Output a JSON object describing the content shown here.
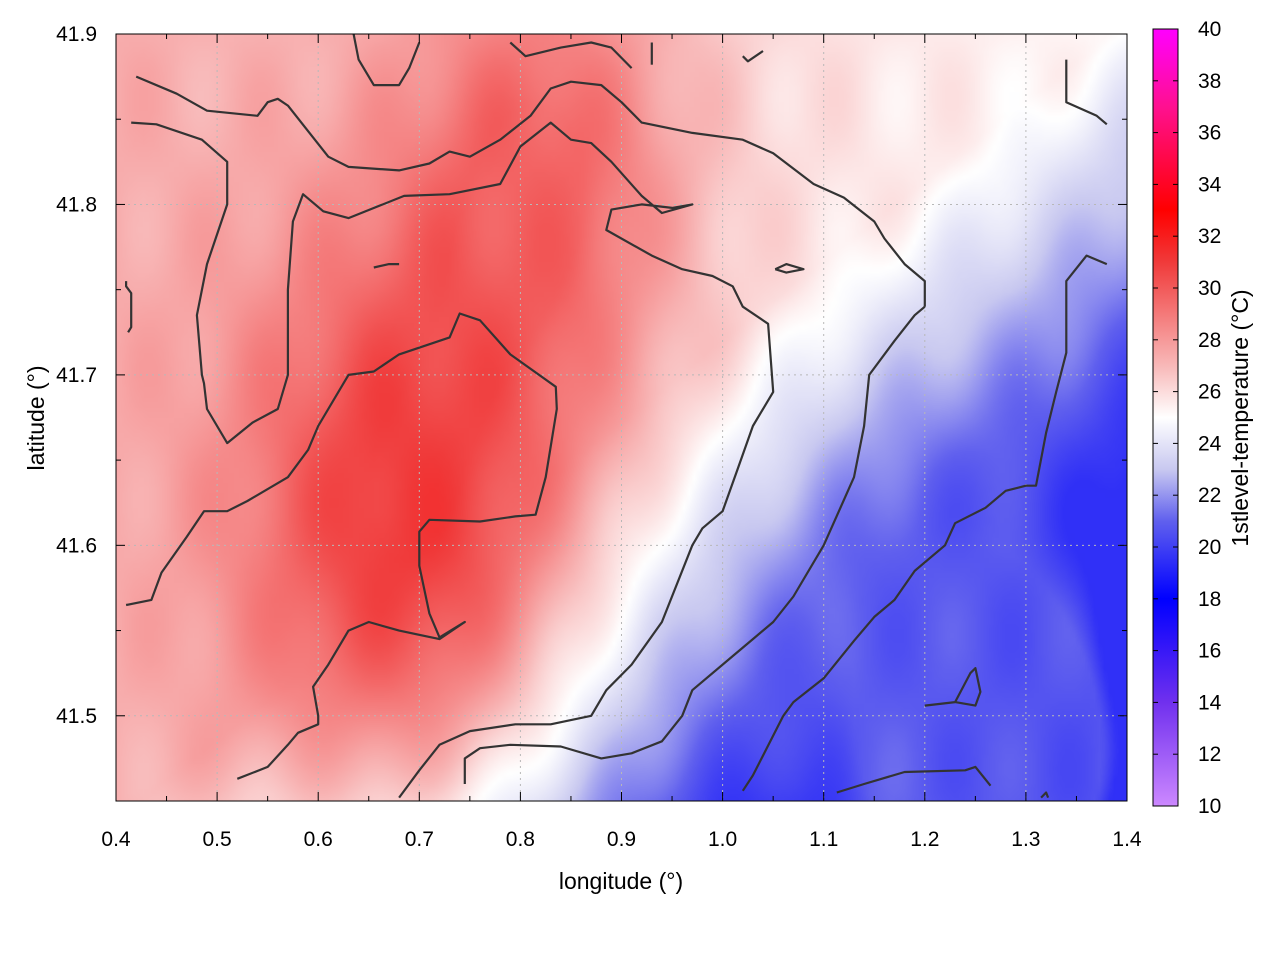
{
  "chart_data": {
    "type": "heatmap",
    "xlabel": "longitude (°)",
    "ylabel": "latitude (°)",
    "colorbar_label": "1stlevel-temperature (°C)",
    "xlim": [
      0.4,
      1.4
    ],
    "ylim": [
      41.45,
      41.9
    ],
    "x_ticks": [
      "0.4",
      "0.5",
      "0.6",
      "0.7",
      "0.8",
      "0.9",
      "1.0",
      "1.1",
      "1.2",
      "1.3",
      "1.4"
    ],
    "y_ticks": [
      "41.5",
      "41.6",
      "41.7",
      "41.8",
      "41.9"
    ],
    "colorbar_range": [
      10,
      40
    ],
    "colorbar_ticks": [
      "10",
      "12",
      "14",
      "16",
      "18",
      "20",
      "22",
      "24",
      "26",
      "28",
      "30",
      "32",
      "34",
      "36",
      "38",
      "40"
    ],
    "colorscale": [
      {
        "value": 10,
        "color": "#cc88ff"
      },
      {
        "value": 14,
        "color": "#7030ee"
      },
      {
        "value": 18,
        "color": "#0000ff"
      },
      {
        "value": 21,
        "color": "#6060ee"
      },
      {
        "value": 23,
        "color": "#c8c8f0"
      },
      {
        "value": 25,
        "color": "#ffffff"
      },
      {
        "value": 27,
        "color": "#f8b8b8"
      },
      {
        "value": 31,
        "color": "#f03a3a"
      },
      {
        "value": 33,
        "color": "#ff0000"
      },
      {
        "value": 37,
        "color": "#ff1090"
      },
      {
        "value": 40,
        "color": "#ff00ff"
      }
    ],
    "grid": true,
    "field_centers": [
      {
        "lon": 0.68,
        "lat": 41.62,
        "temp": 31.0,
        "radius": 0.17
      },
      {
        "lon": 0.82,
        "lat": 41.82,
        "temp": 29.5,
        "radius": 0.14
      },
      {
        "lon": 1.25,
        "lat": 41.52,
        "temp": 20.5,
        "radius": 0.1
      },
      {
        "lon": 1.32,
        "lat": 41.47,
        "temp": 20.5,
        "radius": 0.08
      },
      {
        "lon": 1.2,
        "lat": 41.5,
        "temp": 21.0,
        "radius": 0.14
      }
    ],
    "contours": [
      [
        [
          0.42,
          41.875
        ],
        [
          0.46,
          41.865
        ],
        [
          0.49,
          41.855
        ],
        [
          0.54,
          41.852
        ],
        [
          0.55,
          41.86
        ],
        [
          0.56,
          41.862
        ],
        [
          0.57,
          41.858
        ],
        [
          0.61,
          41.828
        ],
        [
          0.63,
          41.822
        ],
        [
          0.68,
          41.82
        ],
        [
          0.71,
          41.824
        ],
        [
          0.73,
          41.831
        ],
        [
          0.75,
          41.828
        ],
        [
          0.78,
          41.838
        ],
        [
          0.81,
          41.852
        ],
        [
          0.83,
          41.868
        ],
        [
          0.85,
          41.872
        ],
        [
          0.88,
          41.87
        ],
        [
          0.9,
          41.86
        ],
        [
          0.92,
          41.848
        ],
        [
          0.97,
          41.842
        ],
        [
          1.02,
          41.838
        ],
        [
          1.05,
          41.83
        ],
        [
          1.09,
          41.812
        ],
        [
          1.12,
          41.804
        ],
        [
          1.15,
          41.79
        ],
        [
          1.16,
          41.78
        ],
        [
          1.18,
          41.765
        ],
        [
          1.2,
          41.755
        ],
        [
          1.2,
          41.74
        ]
      ],
      [
        [
          0.415,
          41.848
        ],
        [
          0.44,
          41.847
        ],
        [
          0.485,
          41.838
        ],
        [
          0.51,
          41.825
        ],
        [
          0.51,
          41.8
        ],
        [
          0.49,
          41.765
        ],
        [
          0.48,
          41.735
        ],
        [
          0.485,
          41.7
        ],
        [
          0.487,
          41.695
        ],
        [
          0.49,
          41.68
        ],
        [
          0.51,
          41.66
        ],
        [
          0.535,
          41.672
        ],
        [
          0.56,
          41.68
        ],
        [
          0.57,
          41.7
        ],
        [
          0.57,
          41.75
        ],
        [
          0.575,
          41.79
        ],
        [
          0.585,
          41.806
        ],
        [
          0.605,
          41.796
        ],
        [
          0.63,
          41.792
        ],
        [
          0.685,
          41.805
        ],
        [
          0.73,
          41.806
        ],
        [
          0.78,
          41.812
        ],
        [
          0.8,
          41.834
        ],
        [
          0.83,
          41.848
        ],
        [
          0.85,
          41.838
        ],
        [
          0.87,
          41.836
        ],
        [
          0.89,
          41.825
        ],
        [
          0.92,
          41.805
        ],
        [
          0.94,
          41.795
        ],
        [
          0.97,
          41.8
        ],
        [
          0.95,
          41.798
        ],
        [
          0.92,
          41.8
        ],
        [
          0.89,
          41.797
        ],
        [
          0.885,
          41.785
        ],
        [
          0.93,
          41.77
        ],
        [
          0.96,
          41.762
        ],
        [
          0.99,
          41.758
        ],
        [
          1.01,
          41.752
        ],
        [
          1.02,
          41.74
        ],
        [
          1.045,
          41.73
        ],
        [
          1.05,
          41.69
        ],
        [
          1.03,
          41.67
        ],
        [
          1.015,
          41.645
        ],
        [
          1.0,
          41.62
        ],
        [
          0.98,
          41.61
        ],
        [
          0.97,
          41.6
        ],
        [
          0.94,
          41.555
        ],
        [
          0.91,
          41.53
        ],
        [
          0.885,
          41.515
        ],
        [
          0.87,
          41.5
        ],
        [
          0.83,
          41.495
        ],
        [
          0.795,
          41.495
        ],
        [
          0.75,
          41.491
        ],
        [
          0.72,
          41.483
        ],
        [
          0.7,
          41.468
        ],
        [
          0.68,
          41.452
        ]
      ],
      [
        [
          0.41,
          41.565
        ],
        [
          0.435,
          41.568
        ],
        [
          0.445,
          41.584
        ],
        [
          0.47,
          41.605
        ],
        [
          0.487,
          41.62
        ],
        [
          0.51,
          41.62
        ],
        [
          0.53,
          41.626
        ],
        [
          0.57,
          41.64
        ],
        [
          0.59,
          41.656
        ],
        [
          0.6,
          41.67
        ],
        [
          0.63,
          41.7
        ],
        [
          0.655,
          41.702
        ],
        [
          0.68,
          41.712
        ],
        [
          0.73,
          41.722
        ],
        [
          0.74,
          41.736
        ],
        [
          0.76,
          41.732
        ],
        [
          0.79,
          41.712
        ],
        [
          0.835,
          41.693
        ],
        [
          0.836,
          41.68
        ],
        [
          0.825,
          41.64
        ],
        [
          0.815,
          41.618
        ],
        [
          0.795,
          41.617
        ],
        [
          0.76,
          41.614
        ],
        [
          0.71,
          41.615
        ],
        [
          0.7,
          41.608
        ],
        [
          0.7,
          41.588
        ],
        [
          0.71,
          41.56
        ],
        [
          0.72,
          41.546
        ],
        [
          0.745,
          41.555
        ],
        [
          0.72,
          41.545
        ],
        [
          0.68,
          41.55
        ],
        [
          0.65,
          41.555
        ],
        [
          0.63,
          41.55
        ],
        [
          0.61,
          41.53
        ],
        [
          0.595,
          41.517
        ],
        [
          0.6,
          41.5
        ],
        [
          0.6,
          41.495
        ],
        [
          0.58,
          41.49
        ],
        [
          0.57,
          41.483
        ],
        [
          0.55,
          41.47
        ],
        [
          0.52,
          41.463
        ]
      ],
      [
        [
          0.745,
          41.46
        ],
        [
          0.745,
          41.475
        ],
        [
          0.76,
          41.481
        ],
        [
          0.79,
          41.483
        ],
        [
          0.84,
          41.482
        ],
        [
          0.88,
          41.475
        ],
        [
          0.91,
          41.478
        ],
        [
          0.94,
          41.485
        ],
        [
          0.96,
          41.5
        ],
        [
          0.97,
          41.515
        ],
        [
          1.01,
          41.535
        ],
        [
          1.03,
          41.545
        ],
        [
          1.05,
          41.555
        ],
        [
          1.07,
          41.57
        ],
        [
          1.1,
          41.6
        ],
        [
          1.115,
          41.62
        ],
        [
          1.13,
          41.64
        ],
        [
          1.14,
          41.67
        ],
        [
          1.145,
          41.7
        ],
        [
          1.17,
          41.72
        ],
        [
          1.19,
          41.735
        ],
        [
          1.2,
          41.74
        ]
      ],
      [
        [
          1.02,
          41.456
        ],
        [
          1.03,
          41.465
        ],
        [
          1.06,
          41.5
        ],
        [
          1.07,
          41.508
        ],
        [
          1.1,
          41.522
        ],
        [
          1.13,
          41.544
        ],
        [
          1.15,
          41.558
        ],
        [
          1.17,
          41.568
        ],
        [
          1.19,
          41.585
        ],
        [
          1.22,
          41.6
        ],
        [
          1.23,
          41.613
        ],
        [
          1.26,
          41.622
        ],
        [
          1.28,
          41.632
        ],
        [
          1.3,
          41.635
        ],
        [
          1.31,
          41.635
        ],
        [
          1.32,
          41.666
        ],
        [
          1.33,
          41.69
        ],
        [
          1.34,
          41.713
        ],
        [
          1.34,
          41.755
        ],
        [
          1.36,
          41.77
        ],
        [
          1.38,
          41.765
        ]
      ],
      [
        [
          1.2,
          41.506
        ],
        [
          1.23,
          41.508
        ],
        [
          1.25,
          41.506
        ],
        [
          1.255,
          41.514
        ],
        [
          1.25,
          41.528
        ],
        [
          1.245,
          41.525
        ],
        [
          1.23,
          41.508
        ],
        [
          1.2,
          41.506
        ]
      ],
      [
        [
          1.113,
          41.455
        ],
        [
          1.14,
          41.46
        ],
        [
          1.18,
          41.467
        ],
        [
          1.24,
          41.468
        ],
        [
          1.25,
          41.47
        ],
        [
          1.265,
          41.459
        ]
      ],
      [
        [
          0.655,
          41.763
        ],
        [
          0.67,
          41.765
        ],
        [
          0.68,
          41.765
        ]
      ],
      [
        [
          1.052,
          41.762
        ],
        [
          1.063,
          41.765
        ],
        [
          1.08,
          41.762
        ],
        [
          1.063,
          41.76
        ],
        [
          1.052,
          41.762
        ]
      ],
      [
        [
          0.41,
          41.755
        ],
        [
          0.41,
          41.752
        ],
        [
          0.415,
          41.748
        ],
        [
          0.415,
          41.728
        ],
        [
          0.412,
          41.725
        ]
      ],
      [
        [
          0.635,
          41.9
        ],
        [
          0.64,
          41.885
        ],
        [
          0.655,
          41.87
        ],
        [
          0.68,
          41.87
        ],
        [
          0.69,
          41.88
        ],
        [
          0.7,
          41.895
        ]
      ],
      [
        [
          0.79,
          41.895
        ],
        [
          0.805,
          41.887
        ],
        [
          0.84,
          41.892
        ],
        [
          0.87,
          41.895
        ],
        [
          0.89,
          41.892
        ],
        [
          0.91,
          41.88
        ]
      ],
      [
        [
          0.93,
          41.895
        ],
        [
          0.93,
          41.882
        ]
      ],
      [
        [
          1.02,
          41.887
        ],
        [
          1.025,
          41.884
        ],
        [
          1.04,
          41.89
        ]
      ],
      [
        [
          1.34,
          41.885
        ],
        [
          1.34,
          41.86
        ],
        [
          1.37,
          41.852
        ],
        [
          1.38,
          41.847
        ]
      ],
      [
        [
          1.315,
          41.452
        ],
        [
          1.32,
          41.455
        ],
        [
          1.322,
          41.452
        ]
      ]
    ]
  }
}
